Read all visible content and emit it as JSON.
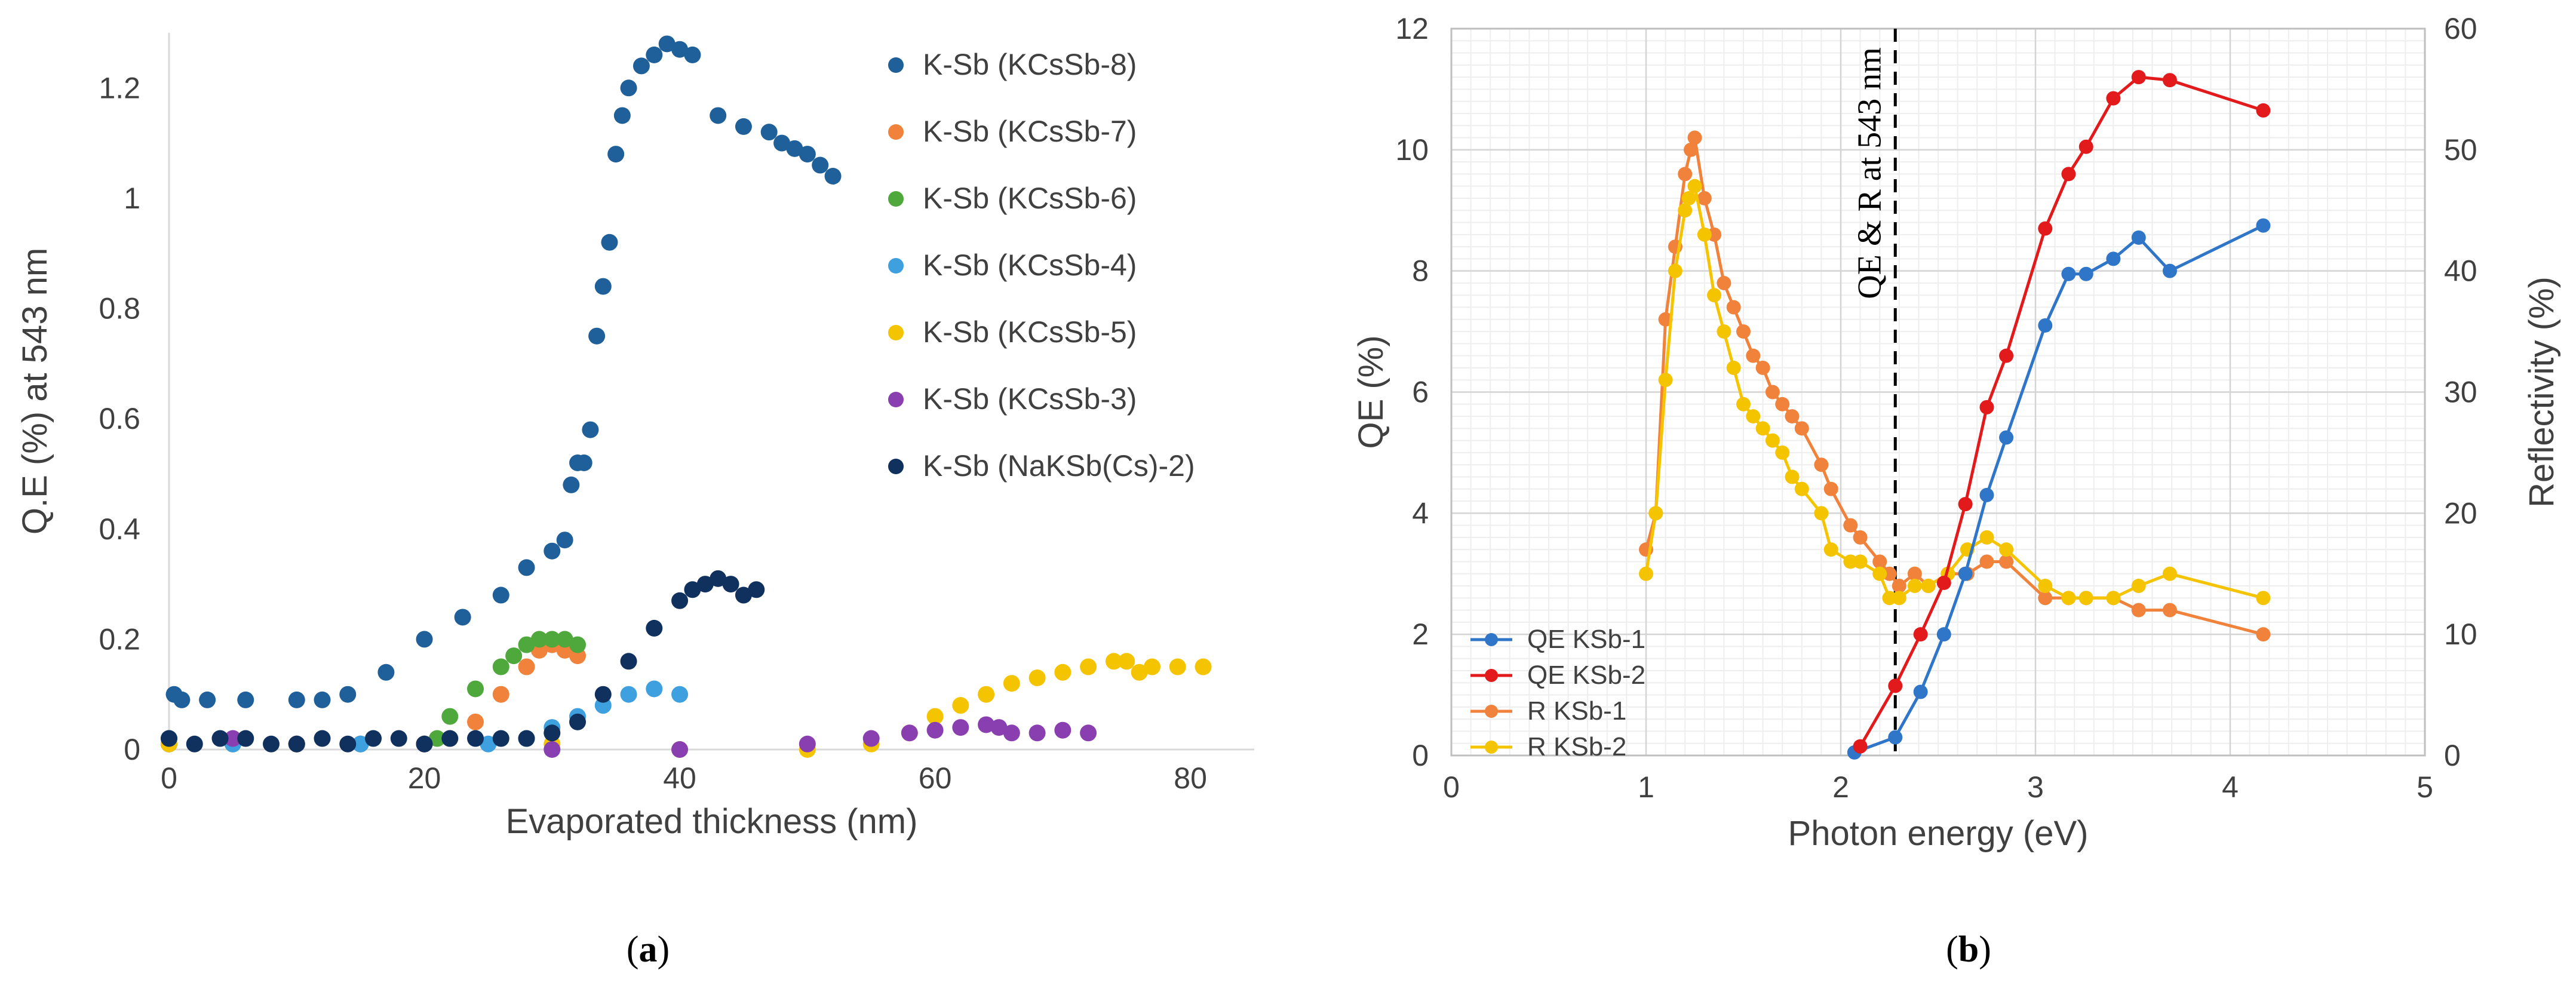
{
  "chart_data": [
    {
      "id": "a",
      "type": "scatter",
      "caption": "a",
      "xlabel": "Evaporated thickness (nm)",
      "ylabel": "Q.E (%) at 543 nm",
      "xlim": [
        0,
        85
      ],
      "ylim": [
        0,
        1.3
      ],
      "xticks": [
        0,
        20,
        40,
        60,
        80
      ],
      "yticks": [
        0,
        0.2,
        0.4,
        0.6,
        0.8,
        1,
        1.2
      ],
      "ytick_labels": [
        "0",
        "0.2",
        "0.4",
        "0.6",
        "0.8",
        "1",
        "1.2"
      ],
      "grid": false,
      "legend_position": "top-right",
      "series": [
        {
          "name": "K-Sb (KCsSb-8)",
          "color": "#1f5f9a",
          "x": [
            0,
            0.4,
            1,
            3,
            6,
            10,
            12,
            14,
            17,
            20,
            23,
            26,
            28,
            30,
            31,
            31.5,
            32,
            32.5,
            33,
            33.5,
            34,
            34.5,
            35,
            35.5,
            36,
            37,
            38,
            39,
            40,
            41,
            43,
            45,
            47,
            48,
            49,
            50,
            51,
            52
          ],
          "y": [
            0.02,
            0.1,
            0.09,
            0.09,
            0.09,
            0.09,
            0.09,
            0.1,
            0.14,
            0.2,
            0.24,
            0.28,
            0.33,
            0.36,
            0.38,
            0.48,
            0.52,
            0.52,
            0.58,
            0.75,
            0.84,
            0.92,
            1.08,
            1.15,
            1.2,
            1.24,
            1.26,
            1.28,
            1.27,
            1.26,
            1.15,
            1.13,
            1.12,
            1.1,
            1.09,
            1.08,
            1.06,
            1.04
          ]
        },
        {
          "name": "K-Sb (KCsSb-7)",
          "color": "#f0823c",
          "x": [
            0,
            5,
            10,
            15,
            20,
            22,
            24,
            26,
            28,
            29,
            30,
            31,
            32
          ],
          "y": [
            0.01,
            0.01,
            0.01,
            0.01,
            0.01,
            0.02,
            0.05,
            0.1,
            0.15,
            0.18,
            0.19,
            0.18,
            0.17
          ]
        },
        {
          "name": "K-Sb (KCsSb-6)",
          "color": "#4fa83c",
          "x": [
            0,
            5,
            10,
            15,
            20,
            21,
            22,
            24,
            26,
            27,
            28,
            29,
            30,
            31,
            32
          ],
          "y": [
            0.01,
            0.01,
            0.01,
            0.01,
            0.01,
            0.02,
            0.06,
            0.11,
            0.15,
            0.17,
            0.19,
            0.2,
            0.2,
            0.2,
            0.19
          ]
        },
        {
          "name": "K-Sb (KCsSb-4)",
          "color": "#3fa0e0",
          "x": [
            0,
            5,
            10,
            15,
            20,
            25,
            28,
            30,
            32,
            34,
            36,
            38,
            40
          ],
          "y": [
            0.01,
            0.01,
            0.01,
            0.01,
            0.01,
            0.01,
            0.02,
            0.04,
            0.06,
            0.08,
            0.1,
            0.11,
            0.1
          ]
        },
        {
          "name": "K-Sb (KCsSb-5)",
          "color": "#f5c400",
          "x": [
            0,
            10,
            20,
            30,
            40,
            50,
            55,
            58,
            60,
            62,
            64,
            66,
            68,
            70,
            72,
            74,
            75,
            76,
            77,
            79,
            81
          ],
          "y": [
            0.01,
            0.01,
            0.01,
            0.01,
            0.0,
            0.0,
            0.01,
            0.03,
            0.06,
            0.08,
            0.1,
            0.12,
            0.13,
            0.14,
            0.15,
            0.16,
            0.16,
            0.14,
            0.15,
            0.15,
            0.15
          ]
        },
        {
          "name": "K-Sb (KCsSb-3)",
          "color": "#8a3fb0",
          "x": [
            5,
            10,
            20,
            30,
            40,
            50,
            55,
            58,
            60,
            62,
            64,
            65,
            66,
            68,
            70,
            72
          ],
          "y": [
            0.02,
            0.01,
            0.01,
            0.0,
            0.0,
            0.01,
            0.02,
            0.03,
            0.035,
            0.04,
            0.045,
            0.04,
            0.03,
            0.03,
            0.035,
            0.03
          ]
        },
        {
          "name": "K-Sb (NaKSb(Cs)-2)",
          "color": "#10305e",
          "x": [
            0,
            2,
            4,
            6,
            8,
            10,
            12,
            14,
            16,
            18,
            20,
            22,
            24,
            26,
            28,
            30,
            32,
            34,
            36,
            38,
            40,
            41,
            42,
            43,
            44,
            45,
            46
          ],
          "y": [
            0.02,
            0.01,
            0.02,
            0.02,
            0.01,
            0.01,
            0.02,
            0.01,
            0.02,
            0.02,
            0.01,
            0.02,
            0.02,
            0.02,
            0.02,
            0.03,
            0.05,
            0.1,
            0.16,
            0.22,
            0.27,
            0.29,
            0.3,
            0.31,
            0.3,
            0.28,
            0.29
          ]
        }
      ]
    },
    {
      "id": "b",
      "type": "line",
      "caption": "b",
      "xlabel": "Photon energy (eV)",
      "ylabel": "QE (%)",
      "y2label": "Reflectivity (%)",
      "xlim": [
        0,
        5
      ],
      "ylim": [
        0,
        12
      ],
      "y2lim": [
        0,
        60
      ],
      "xticks": [
        0,
        1,
        2,
        3,
        4,
        5
      ],
      "yticks": [
        0,
        2,
        4,
        6,
        8,
        10,
        12
      ],
      "y2ticks": [
        0,
        10,
        20,
        30,
        40,
        50,
        60
      ],
      "grid": true,
      "legend_position": "bottom-left",
      "vline": {
        "x": 2.28,
        "label": "QE & R at 543 nm"
      },
      "series": [
        {
          "name": "QE KSb-1",
          "color": "#2f75c8",
          "axis": "left",
          "x": [
            2.07,
            2.28,
            2.41,
            2.53,
            2.64,
            2.75,
            2.85,
            3.05,
            3.17,
            3.26,
            3.4,
            3.53,
            3.69,
            4.17
          ],
          "y": [
            0.05,
            0.3,
            1.05,
            2.0,
            3.0,
            4.3,
            5.25,
            7.1,
            7.95,
            7.95,
            8.2,
            8.55,
            8.0,
            8.75
          ]
        },
        {
          "name": "QE KSb-2",
          "color": "#e31a1c",
          "axis": "left",
          "x": [
            2.1,
            2.28,
            2.41,
            2.53,
            2.64,
            2.75,
            2.85,
            3.05,
            3.17,
            3.26,
            3.4,
            3.53,
            3.69,
            4.17
          ],
          "y": [
            0.15,
            1.15,
            2.0,
            2.85,
            4.15,
            5.75,
            6.6,
            8.7,
            9.6,
            10.05,
            10.85,
            11.2,
            11.15,
            10.65
          ]
        },
        {
          "name": "R KSb-1",
          "color": "#f0823c",
          "axis": "right",
          "x": [
            1.0,
            1.05,
            1.1,
            1.15,
            1.2,
            1.23,
            1.25,
            1.3,
            1.35,
            1.4,
            1.45,
            1.5,
            1.55,
            1.6,
            1.65,
            1.7,
            1.75,
            1.8,
            1.9,
            1.95,
            2.05,
            2.1,
            2.2,
            2.25,
            2.3,
            2.38,
            2.45,
            2.55,
            2.65,
            2.75,
            2.85,
            3.05,
            3.17,
            3.26,
            3.4,
            3.53,
            3.69,
            4.17
          ],
          "y": [
            17,
            20,
            36,
            42,
            48,
            50,
            51,
            46,
            43,
            39,
            37,
            35,
            33,
            32,
            30,
            29,
            28,
            27,
            24,
            22,
            19,
            18,
            16,
            15,
            14,
            15,
            14,
            15,
            15,
            16,
            16,
            13,
            13,
            13,
            13,
            12,
            12,
            10
          ]
        },
        {
          "name": "R KSb-2",
          "color": "#f5c400",
          "axis": "right",
          "x": [
            1.0,
            1.05,
            1.1,
            1.15,
            1.2,
            1.22,
            1.25,
            1.3,
            1.35,
            1.4,
            1.45,
            1.5,
            1.55,
            1.6,
            1.65,
            1.7,
            1.75,
            1.8,
            1.9,
            1.95,
            2.05,
            2.1,
            2.2,
            2.25,
            2.3,
            2.38,
            2.45,
            2.55,
            2.65,
            2.75,
            2.85,
            3.05,
            3.17,
            3.26,
            3.4,
            3.53,
            3.69,
            4.17
          ],
          "y": [
            15,
            20,
            31,
            40,
            45,
            46,
            47,
            43,
            38,
            35,
            32,
            29,
            28,
            27,
            26,
            25,
            23,
            22,
            20,
            17,
            16,
            16,
            15,
            13,
            13,
            14,
            14,
            15,
            17,
            18,
            17,
            14,
            13,
            13,
            13,
            14,
            15,
            13
          ]
        }
      ]
    }
  ]
}
